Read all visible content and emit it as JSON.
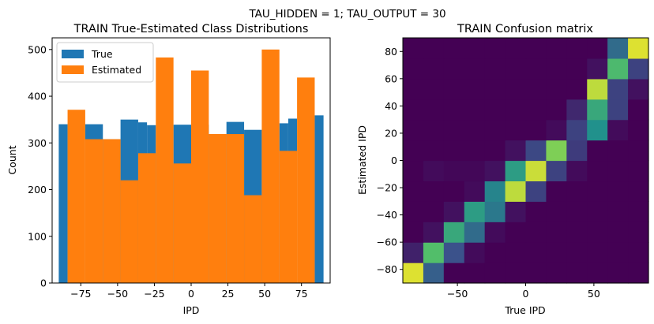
{
  "suptitle": "TAU_HIDDEN = 1; TAU_OUTPUT = 30",
  "chart_data": [
    {
      "type": "bar",
      "title": "TRAIN True-Estimated Class Distributions",
      "xlabel": "IPD",
      "ylabel": "Count",
      "xlim": [
        -94.5,
        94.5
      ],
      "ylim": [
        0,
        525
      ],
      "xticks": [
        -75,
        -50,
        -25,
        0,
        25,
        50,
        75
      ],
      "xtick_labels": [
        "−75",
        "−50",
        "−25",
        "0",
        "25",
        "50",
        "75"
      ],
      "yticks": [
        0,
        100,
        200,
        300,
        400,
        500
      ],
      "ytick_labels": [
        "0",
        "100",
        "200",
        "300",
        "400",
        "500"
      ],
      "legend_position": "top-left",
      "series": [
        {
          "name": "True",
          "color": "#1f77b4",
          "bins": [
            [
              -90,
              -84,
              340
            ],
            [
              -84,
              -72,
              0
            ],
            [
              -72,
              -60,
              340
            ],
            [
              -60,
              -48,
              308
            ],
            [
              -48,
              -36,
              350
            ],
            [
              -36,
              -30,
              344
            ],
            [
              -30,
              -24,
              338
            ],
            [
              -24,
              -12,
              0
            ],
            [
              -12,
              0,
              339
            ],
            [
              0,
              12,
              339
            ],
            [
              12,
              24,
              0
            ],
            [
              24,
              36,
              345
            ],
            [
              36,
              48,
              328
            ],
            [
              48,
              60,
              0
            ],
            [
              60,
              66,
              342
            ],
            [
              66,
              72,
              352
            ],
            [
              72,
              84,
              0
            ],
            [
              84,
              90,
              359
            ]
          ]
        },
        {
          "name": "Estimated",
          "color": "#ff7f0e",
          "bins": [
            [
              -84,
              -72,
              371
            ],
            [
              -72,
              -60,
              308
            ],
            [
              -60,
              -48,
              308
            ],
            [
              -48,
              -36,
              220
            ],
            [
              -36,
              -24,
              278
            ],
            [
              -24,
              -12,
              483
            ],
            [
              -12,
              0,
              256
            ],
            [
              0,
              12,
              455
            ],
            [
              12,
              24,
              319
            ],
            [
              24,
              36,
              319
            ],
            [
              36,
              48,
              188
            ],
            [
              48,
              60,
              500
            ],
            [
              60,
              72,
              283
            ],
            [
              72,
              84,
              440
            ]
          ]
        }
      ]
    },
    {
      "type": "heatmap",
      "title": "TRAIN Confusion matrix",
      "xlabel": "True IPD",
      "ylabel": "Estimated IPD",
      "xlim": [
        -90,
        90
      ],
      "ylim": [
        -90,
        90
      ],
      "xticks": [
        -50,
        0,
        50
      ],
      "xtick_labels": [
        "−50",
        "0",
        "50"
      ],
      "yticks": [
        -80,
        -60,
        -40,
        -20,
        0,
        20,
        40,
        60,
        80
      ],
      "ytick_labels": [
        "−80",
        "−60",
        "−40",
        "−20",
        "0",
        "20",
        "40",
        "60",
        "80"
      ],
      "colormap": "viridis",
      "grid_size": 12,
      "values": [
        [
          0.95,
          0.3,
          0,
          0,
          0,
          0,
          0,
          0,
          0,
          0,
          0,
          0
        ],
        [
          0.1,
          0.7,
          0.25,
          0.03,
          0,
          0,
          0,
          0,
          0,
          0,
          0,
          0
        ],
        [
          0,
          0.05,
          0.6,
          0.35,
          0.03,
          0,
          0,
          0,
          0,
          0,
          0,
          0
        ],
        [
          0,
          0,
          0.05,
          0.55,
          0.4,
          0.05,
          0,
          0,
          0,
          0,
          0,
          0
        ],
        [
          0,
          0,
          0,
          0.03,
          0.45,
          0.9,
          0.2,
          0,
          0,
          0,
          0,
          0
        ],
        [
          0,
          0.03,
          0.02,
          0.02,
          0.05,
          0.55,
          0.92,
          0.2,
          0.03,
          0,
          0,
          0
        ],
        [
          0,
          0,
          0,
          0,
          0,
          0.05,
          0.22,
          0.8,
          0.18,
          0,
          0,
          0
        ],
        [
          0,
          0,
          0,
          0,
          0,
          0,
          0,
          0.03,
          0.2,
          0.5,
          0.03,
          0
        ],
        [
          0,
          0,
          0,
          0,
          0,
          0,
          0,
          0,
          0.12,
          0.6,
          0.2,
          0
        ],
        [
          0,
          0,
          0,
          0,
          0,
          0,
          0,
          0,
          0,
          0.9,
          0.2,
          0.05
        ],
        [
          0,
          0,
          0,
          0,
          0,
          0,
          0,
          0,
          0,
          0.05,
          0.68,
          0.2
        ],
        [
          0,
          0,
          0,
          0,
          0,
          0,
          0,
          0,
          0,
          0,
          0.35,
          0.95
        ]
      ]
    }
  ]
}
